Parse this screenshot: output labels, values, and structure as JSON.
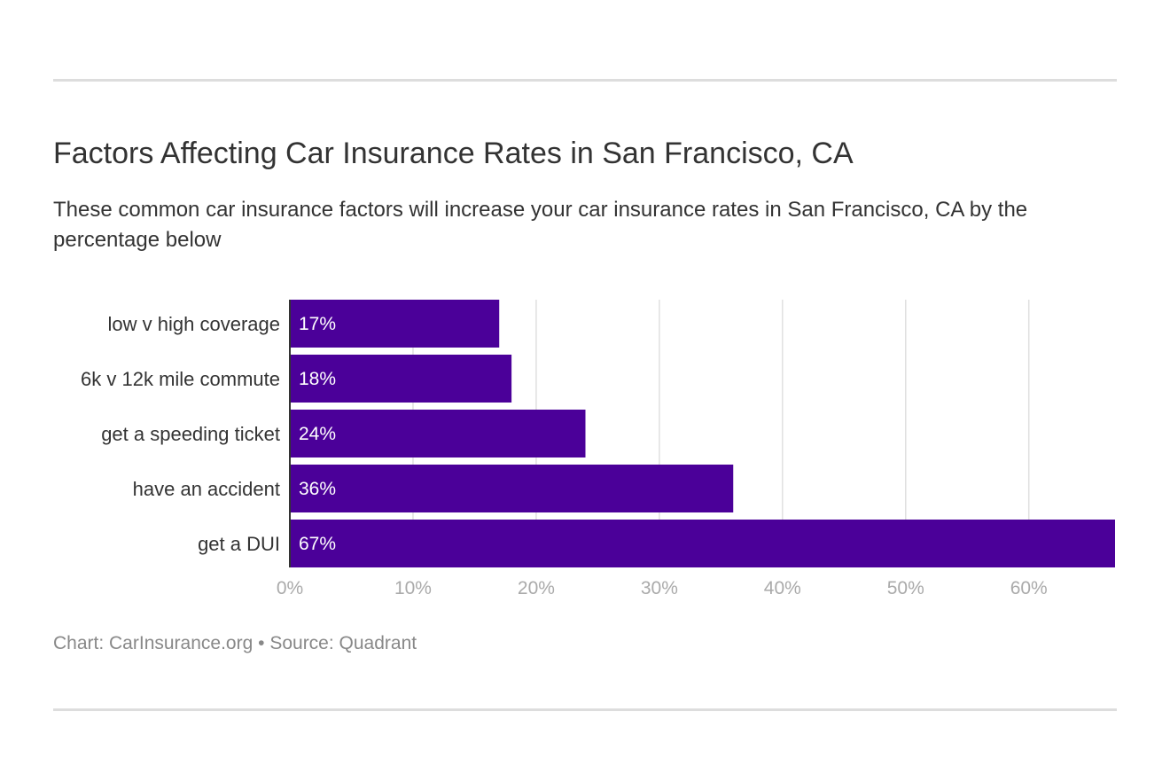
{
  "title": "Factors Affecting Car Insurance Rates in San Francisco, CA",
  "subtitle": "These common car insurance factors will increase your car insurance rates in San Francisco, CA by the percentage below",
  "footer": {
    "chart_credit": "Chart: CarInsurance.org",
    "separator": "•",
    "source": "Source: Quadrant"
  },
  "colors": {
    "bar": "#4b0099",
    "bar_label": "#ffffff",
    "grid": "#e0e0e0",
    "axis": "#333333",
    "tick_label": "#aaaaaa",
    "category_label": "#333333"
  },
  "chart_data": {
    "type": "bar",
    "orientation": "horizontal",
    "categories": [
      "low v high coverage",
      "6k v 12k mile commute",
      "get a speeding ticket",
      "have an accident",
      "get a DUI"
    ],
    "values": [
      17,
      18,
      24,
      36,
      67
    ],
    "value_labels": [
      "17%",
      "18%",
      "24%",
      "36%",
      "67%"
    ],
    "xlim": [
      0,
      67
    ],
    "x_ticks": [
      0,
      10,
      20,
      30,
      40,
      50,
      60
    ],
    "x_tick_labels": [
      "0%",
      "10%",
      "20%",
      "30%",
      "40%",
      "50%",
      "60%"
    ],
    "grid": true
  }
}
